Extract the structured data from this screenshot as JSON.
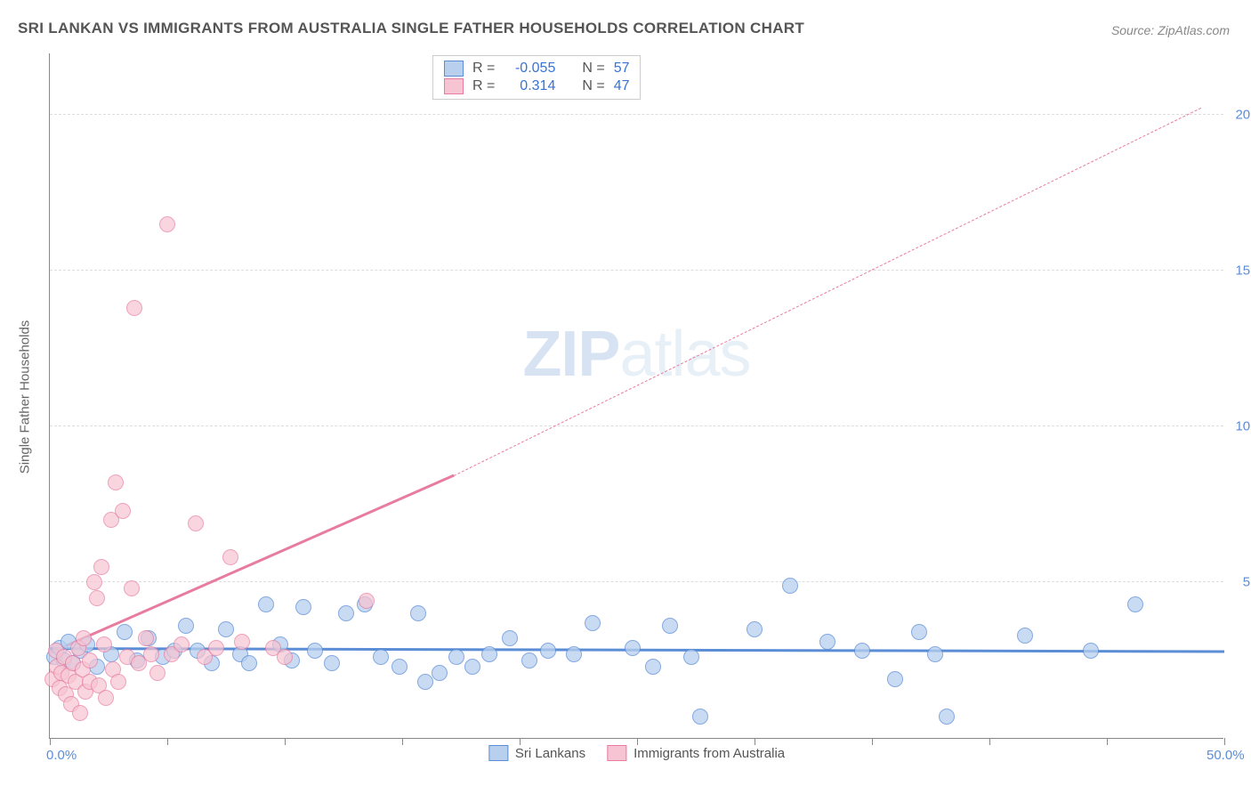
{
  "title": "SRI LANKAN VS IMMIGRANTS FROM AUSTRALIA SINGLE FATHER HOUSEHOLDS CORRELATION CHART",
  "source": "Source: ZipAtlas.com",
  "y_axis_label": "Single Father Households",
  "watermark_bold": "ZIP",
  "watermark_light": "atlas",
  "chart": {
    "type": "scatter",
    "xlim": [
      0,
      50
    ],
    "ylim": [
      0,
      22
    ],
    "x_ticks": [
      0,
      5,
      10,
      15,
      20,
      25,
      30,
      35,
      40,
      45,
      50
    ],
    "x_tick_labels": {
      "0": "0.0%",
      "50": "50.0%"
    },
    "y_gridlines": [
      5,
      10,
      15,
      20
    ],
    "y_tick_labels": {
      "5": "5.0%",
      "10": "10.0%",
      "15": "15.0%",
      "20": "20.0%"
    },
    "background_color": "#ffffff",
    "grid_color": "#dddddd",
    "axis_color": "#888888",
    "label_color": "#5b8dd6",
    "marker_radius": 9,
    "series": [
      {
        "name": "Sri Lankans",
        "fill": "#b8d0ee",
        "stroke": "#5b8dd6",
        "fill_opacity": 0.75,
        "trend": {
          "x1": 0,
          "y1": 2.85,
          "x2": 50,
          "y2": 2.75,
          "width": 2.5
        },
        "points": [
          [
            0.2,
            2.6
          ],
          [
            0.4,
            2.9
          ],
          [
            0.6,
            2.5
          ],
          [
            0.8,
            3.1
          ],
          [
            1.0,
            2.4
          ],
          [
            1.3,
            2.8
          ],
          [
            1.6,
            3.0
          ],
          [
            2.0,
            2.3
          ],
          [
            2.6,
            2.7
          ],
          [
            3.2,
            3.4
          ],
          [
            3.7,
            2.5
          ],
          [
            4.2,
            3.2
          ],
          [
            4.8,
            2.6
          ],
          [
            5.3,
            2.8
          ],
          [
            5.8,
            3.6
          ],
          [
            6.3,
            2.8
          ],
          [
            6.9,
            2.4
          ],
          [
            7.5,
            3.5
          ],
          [
            8.1,
            2.7
          ],
          [
            8.5,
            2.4
          ],
          [
            9.2,
            4.3
          ],
          [
            9.8,
            3.0
          ],
          [
            10.3,
            2.5
          ],
          [
            10.8,
            4.2
          ],
          [
            11.3,
            2.8
          ],
          [
            12.0,
            2.4
          ],
          [
            12.6,
            4.0
          ],
          [
            13.4,
            4.3
          ],
          [
            14.1,
            2.6
          ],
          [
            14.9,
            2.3
          ],
          [
            15.7,
            4.0
          ],
          [
            16.0,
            1.8
          ],
          [
            16.6,
            2.1
          ],
          [
            17.3,
            2.6
          ],
          [
            18.0,
            2.3
          ],
          [
            18.7,
            2.7
          ],
          [
            19.6,
            3.2
          ],
          [
            20.4,
            2.5
          ],
          [
            21.2,
            2.8
          ],
          [
            22.3,
            2.7
          ],
          [
            23.1,
            3.7
          ],
          [
            24.8,
            2.9
          ],
          [
            25.7,
            2.3
          ],
          [
            26.4,
            3.6
          ],
          [
            27.3,
            2.6
          ],
          [
            27.7,
            0.7
          ],
          [
            30.0,
            3.5
          ],
          [
            31.5,
            4.9
          ],
          [
            33.1,
            3.1
          ],
          [
            34.6,
            2.8
          ],
          [
            36.0,
            1.9
          ],
          [
            37.0,
            3.4
          ],
          [
            37.7,
            2.7
          ],
          [
            38.2,
            0.7
          ],
          [
            41.5,
            3.3
          ],
          [
            44.3,
            2.8
          ],
          [
            46.2,
            4.3
          ]
        ]
      },
      {
        "name": "Immigrants from Australia",
        "fill": "#f6c4d2",
        "stroke": "#e87ba0",
        "fill_opacity": 0.7,
        "trend": {
          "x1": 0,
          "y1": 2.7,
          "x2_solid": 17.2,
          "y2_solid": 8.4,
          "x2": 49,
          "y2": 20.2,
          "width": 2.5
        },
        "points": [
          [
            0.1,
            1.9
          ],
          [
            0.3,
            2.3
          ],
          [
            0.25,
            2.8
          ],
          [
            0.4,
            1.6
          ],
          [
            0.5,
            2.1
          ],
          [
            0.6,
            2.6
          ],
          [
            0.7,
            1.4
          ],
          [
            0.8,
            2.0
          ],
          [
            0.9,
            1.1
          ],
          [
            1.0,
            2.4
          ],
          [
            1.1,
            1.8
          ],
          [
            1.2,
            2.9
          ],
          [
            1.3,
            0.8
          ],
          [
            1.4,
            2.2
          ],
          [
            1.5,
            1.5
          ],
          [
            1.45,
            3.2
          ],
          [
            1.7,
            2.5
          ],
          [
            1.7,
            1.8
          ],
          [
            1.9,
            5.0
          ],
          [
            2.0,
            4.5
          ],
          [
            2.1,
            1.7
          ],
          [
            2.3,
            3.0
          ],
          [
            2.2,
            5.5
          ],
          [
            2.4,
            1.3
          ],
          [
            2.6,
            7.0
          ],
          [
            2.7,
            2.2
          ],
          [
            2.8,
            8.2
          ],
          [
            2.9,
            1.8
          ],
          [
            3.1,
            7.3
          ],
          [
            3.3,
            2.6
          ],
          [
            3.5,
            4.8
          ],
          [
            3.6,
            13.8
          ],
          [
            3.8,
            2.4
          ],
          [
            4.1,
            3.2
          ],
          [
            4.3,
            2.7
          ],
          [
            4.6,
            2.1
          ],
          [
            5.0,
            16.5
          ],
          [
            5.2,
            2.7
          ],
          [
            5.6,
            3.0
          ],
          [
            6.2,
            6.9
          ],
          [
            6.6,
            2.6
          ],
          [
            7.1,
            2.9
          ],
          [
            7.7,
            5.8
          ],
          [
            8.2,
            3.1
          ],
          [
            9.5,
            2.9
          ],
          [
            10.0,
            2.6
          ],
          [
            13.5,
            4.4
          ]
        ]
      }
    ],
    "stats_box": {
      "rows": [
        {
          "swatch_fill": "#b8d0ee",
          "swatch_stroke": "#5b8dd6",
          "r": "-0.055",
          "n": "57"
        },
        {
          "swatch_fill": "#f6c4d2",
          "swatch_stroke": "#e87ba0",
          "r": "0.314",
          "n": "47"
        }
      ],
      "labels": {
        "r": "R =",
        "n": "N ="
      }
    },
    "legend": [
      {
        "label": "Sri Lankans",
        "fill": "#b8d0ee",
        "stroke": "#5b8dd6"
      },
      {
        "label": "Immigrants from Australia",
        "fill": "#f6c4d2",
        "stroke": "#e87ba0"
      }
    ]
  }
}
